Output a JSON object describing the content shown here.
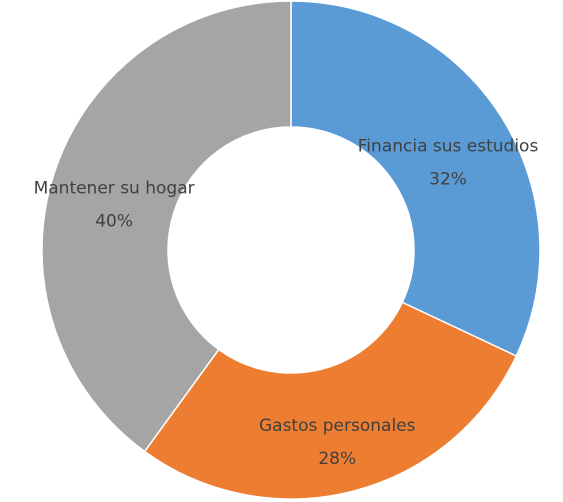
{
  "chart_data": {
    "type": "donut",
    "categories": [
      "Financia sus estudios",
      "Gastos personales",
      "Mantener su hogar"
    ],
    "values": [
      32,
      28,
      40
    ],
    "value_labels": [
      "32%",
      "28%",
      "40%"
    ],
    "colors": [
      "#5b9bd5",
      "#ed7d31",
      "#a5a5a5"
    ]
  }
}
